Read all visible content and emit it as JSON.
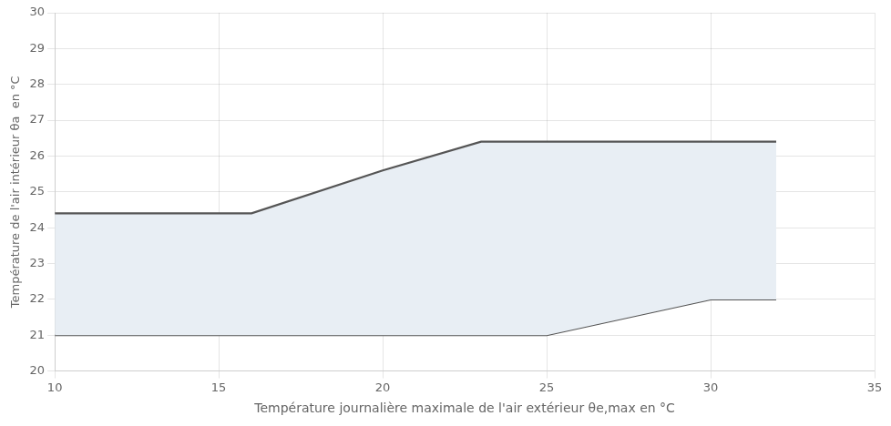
{
  "chart_data": {
    "type": "line",
    "xlabel": "Température journalière maximale de l'air extérieur θe,max en °C",
    "ylabel": "Température de l'air intérieur θa  en °C",
    "color": "#e8eef4",
    "series": [
      {
        "x": [
          10,
          16,
          20,
          23,
          30,
          32
        ],
        "values": [
          24.4,
          24.4,
          25.6,
          26.4,
          26.4,
          26.4
        ],
        "color": "#555555"
      },
      {
        "x": [
          10,
          25,
          30,
          32
        ],
        "values": [
          21.0,
          21.0,
          22.0,
          22.0
        ],
        "color": "#555555"
      }
    ],
    "xlim": [
      10,
      35
    ],
    "ylim": [
      20,
      30
    ],
    "xticks": [
      10,
      15,
      20,
      25,
      30,
      35
    ],
    "yticks": [
      20,
      21,
      22,
      23,
      24,
      25,
      26,
      27,
      28,
      29,
      30
    ],
    "grid": true
  }
}
